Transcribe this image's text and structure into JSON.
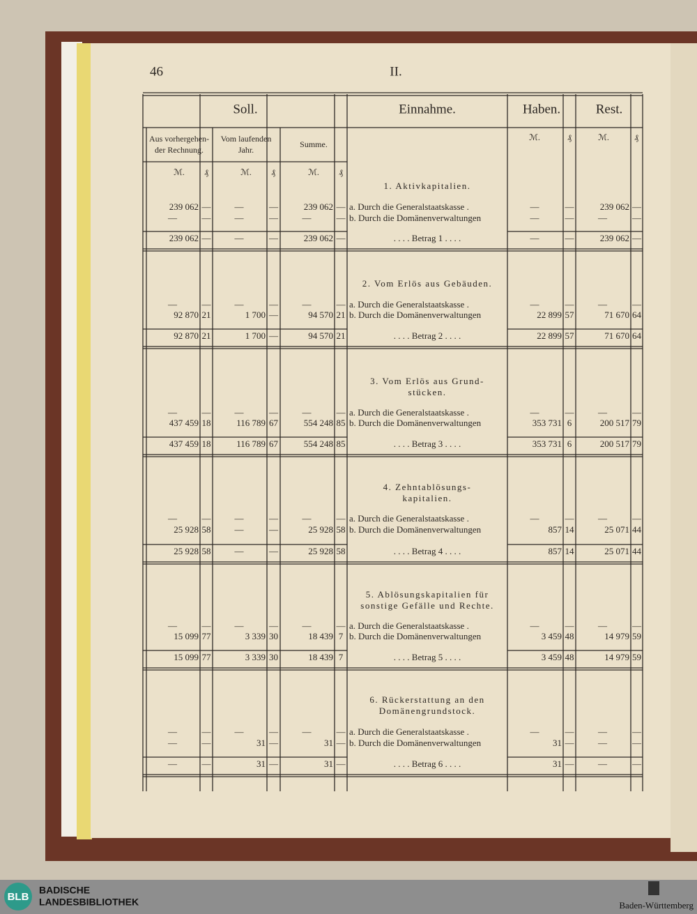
{
  "header": {
    "page_number": "46",
    "section": "II."
  },
  "table": {
    "headers": {
      "soll": "Soll.",
      "einnahme": "Einnahme.",
      "haben": "Haben.",
      "rest": "Rest."
    },
    "subheaders": [
      [
        "Aus vorhergehen-",
        "der Rechnung."
      ],
      [
        "Vom laufenden",
        "Jahr."
      ],
      [
        "Summe."
      ]
    ],
    "mark": "ℳ.",
    "pfennig": "₰",
    "sections": [
      {
        "title": [
          "1. Aktivkapitalien."
        ],
        "rows": [
          [
            "239 062",
            "—",
            "—",
            "—",
            "239 062",
            "—",
            "a. Durch die Generalstaatskasse .",
            "—",
            "—",
            "239 062",
            "—"
          ],
          [
            "—",
            "—",
            "—",
            "—",
            "—",
            "—",
            "b. Durch die Domänenverwaltungen",
            "—",
            "—",
            "—",
            "—"
          ],
          [
            "239 062",
            "—",
            "—",
            "—",
            "239 062",
            "—",
            ". . . . Betrag 1 . . . .",
            "—",
            "—",
            "239 062",
            "—"
          ]
        ]
      },
      {
        "title": [
          "2. Vom Erlös aus Gebäuden."
        ],
        "rows": [
          [
            "—",
            "—",
            "—",
            "—",
            "—",
            "—",
            "a. Durch die Generalstaatskasse .",
            "—",
            "—",
            "—",
            "—"
          ],
          [
            "92 870",
            "21",
            "1 700",
            "—",
            "94 570",
            "21",
            "b. Durch die Domänenverwaltungen",
            "22 899",
            "57",
            "71 670",
            "64"
          ],
          [
            "92 870",
            "21",
            "1 700",
            "—",
            "94 570",
            "21",
            ". . . . Betrag 2 . . . .",
            "22 899",
            "57",
            "71 670",
            "64"
          ]
        ]
      },
      {
        "title": [
          "3. Vom Erlös aus Grund-",
          "stücken."
        ],
        "rows": [
          [
            "—",
            "—",
            "—",
            "—",
            "—",
            "—",
            "a. Durch die Generalstaatskasse .",
            "—",
            "—",
            "—",
            "—"
          ],
          [
            "437 459",
            "18",
            "116 789",
            "67",
            "554 248",
            "85",
            "b. Durch die Domänenverwaltungen",
            "353 731",
            "6",
            "200 517",
            "79"
          ],
          [
            "437 459",
            "18",
            "116 789",
            "67",
            "554 248",
            "85",
            ". . . . Betrag 3 . . . .",
            "353 731",
            "6",
            "200 517",
            "79"
          ]
        ]
      },
      {
        "title": [
          "4. Zehntablösungs-",
          "kapitalien."
        ],
        "rows": [
          [
            "—",
            "—",
            "—",
            "—",
            "—",
            "—",
            "a. Durch die Generalstaatskasse .",
            "—",
            "—",
            "—",
            "—"
          ],
          [
            "25 928",
            "58",
            "—",
            "—",
            "25 928",
            "58",
            "b. Durch die Domänenverwaltungen",
            "857",
            "14",
            "25 071",
            "44"
          ],
          [
            "25 928",
            "58",
            "—",
            "—",
            "25 928",
            "58",
            ". . . . Betrag 4 . . . .",
            "857",
            "14",
            "25 071",
            "44"
          ]
        ]
      },
      {
        "title": [
          "5. Ablösungskapitalien für",
          "sonstige Gefälle und Rechte."
        ],
        "rows": [
          [
            "—",
            "—",
            "—",
            "—",
            "—",
            "—",
            "a. Durch die Generalstaatskasse .",
            "—",
            "—",
            "—",
            "—"
          ],
          [
            "15 099",
            "77",
            "3 339",
            "30",
            "18 439",
            "7",
            "b. Durch die Domänenverwaltungen",
            "3 459",
            "48",
            "14 979",
            "59"
          ],
          [
            "15 099",
            "77",
            "3 339",
            "30",
            "18 439",
            "7",
            ". . . . Betrag 5 . . . .",
            "3 459",
            "48",
            "14 979",
            "59"
          ]
        ]
      },
      {
        "title": [
          "6. Rückerstattung an den",
          "Domänengrundstock."
        ],
        "rows": [
          [
            "—",
            "—",
            "—",
            "—",
            "—",
            "—",
            "a. Durch die Generalstaatskasse .",
            "—",
            "—",
            "—",
            "—"
          ],
          [
            "—",
            "—",
            "31",
            "—",
            "31",
            "—",
            "b. Durch die Domänenverwaltungen",
            "31",
            "—",
            "—",
            "—"
          ],
          [
            "—",
            "—",
            "31",
            "—",
            "31",
            "—",
            ". . . . Betrag 6 . . . .",
            "31",
            "—",
            "—",
            "—"
          ]
        ]
      }
    ]
  },
  "footer": {
    "logo": "BLB",
    "library": [
      "BADISCHE",
      "LANDESBIBLIOTHEK"
    ],
    "state": "Baden-Württemberg"
  }
}
